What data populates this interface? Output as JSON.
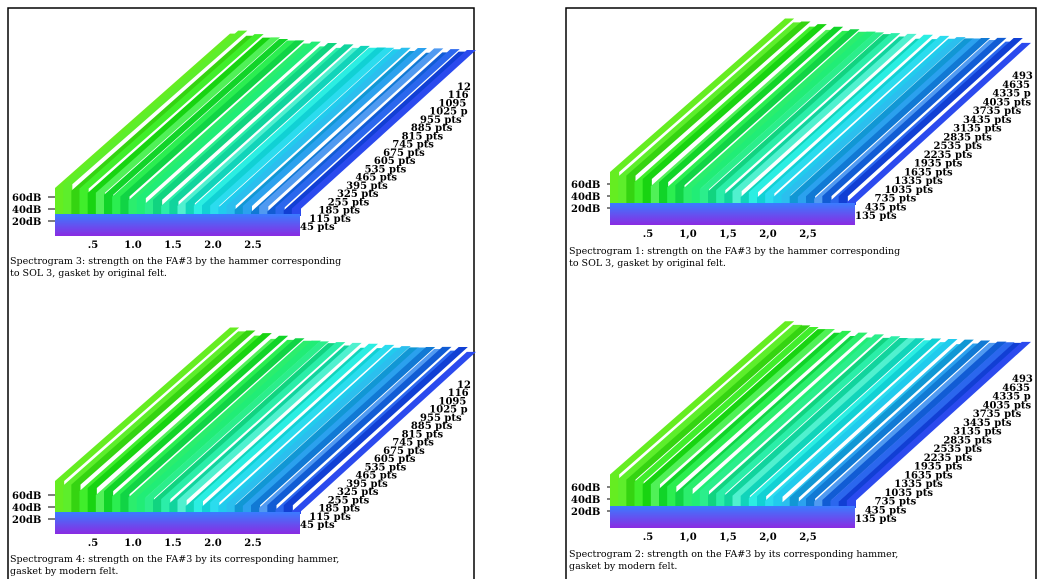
{
  "panels": [
    {
      "figures": [
        {
          "y_labels": [
            "60dB",
            "40dB",
            "20dB"
          ],
          "x_labels": [
            ".5",
            "1.0",
            "1.5",
            "2.0",
            "2.5"
          ],
          "depth_labels": [
            "12",
            "116",
            "1095",
            "1025 p",
            "955 pts",
            "885 pts",
            "815 pts",
            "745 pts",
            "675 pts",
            "605 pts",
            "535 pts",
            "465 pts",
            "395 pts",
            "325 pts",
            "255 pts",
            "185 pts",
            "115 pts",
            "45 pts"
          ],
          "caption": [
            "Spectrogram 3: strength on the FA#3 by the hammer corresponding",
            "to SOL 3, gasket by original felt."
          ]
        },
        {
          "y_labels": [
            "60dB",
            "40dB",
            "20dB"
          ],
          "x_labels": [
            ".5",
            "1.0",
            "1.5",
            "2.0",
            "2.5"
          ],
          "depth_labels": [
            "12",
            "116",
            "1095",
            "1025 p",
            "955 pts",
            "885 pts",
            "815 pts",
            "745 pts",
            "675 pts",
            "605 pts",
            "535 pts",
            "465 pts",
            "395 pts",
            "325 pts",
            "255 pts",
            "185 pts",
            "115 pts",
            "45 pts"
          ],
          "caption": [
            "Spectrogram 4: strength on the FA#3 by its corresponding hammer,",
            "gasket by modern felt."
          ]
        }
      ]
    },
    {
      "figures": [
        {
          "y_labels": [
            "60dB",
            "40dB",
            "20dB"
          ],
          "x_labels": [
            ".5",
            "1,0",
            "1,5",
            "2,0",
            "2,5"
          ],
          "depth_labels": [
            "493",
            "4635",
            "4335 p",
            "4035 pts",
            "3735 pts",
            "3435 pts",
            "3135 pts",
            "2835 pts",
            "2535 pts",
            "2235 pts",
            "1935 pts",
            "1635 pts",
            "1335 pts",
            "1035 pts",
            "735 pts",
            "435 pts",
            "135 pts"
          ],
          "caption": [
            "Spectrogram 1: strength on the FA#3 by the hammer corresponding",
            "to SOL 3, gasket by original felt."
          ]
        },
        {
          "y_labels": [
            "60dB",
            "40dB",
            "20dB"
          ],
          "x_labels": [
            ".5",
            "1,0",
            "1,5",
            "2,0",
            "2,5"
          ],
          "depth_labels": [
            "493",
            "4635",
            "4335 p",
            "4035 pts",
            "3735 pts",
            "3435 pts",
            "3135 pts",
            "2835 pts",
            "2535 pts",
            "2235 pts",
            "1935 pts",
            "1635 pts",
            "1335 pts",
            "1035 pts",
            "735 pts",
            "435 pts",
            "135 pts"
          ],
          "caption": [
            "Spectrogram 2: strength on the FA#3 by its corresponding hammer,",
            "gasket by modern felt."
          ]
        }
      ]
    }
  ]
}
